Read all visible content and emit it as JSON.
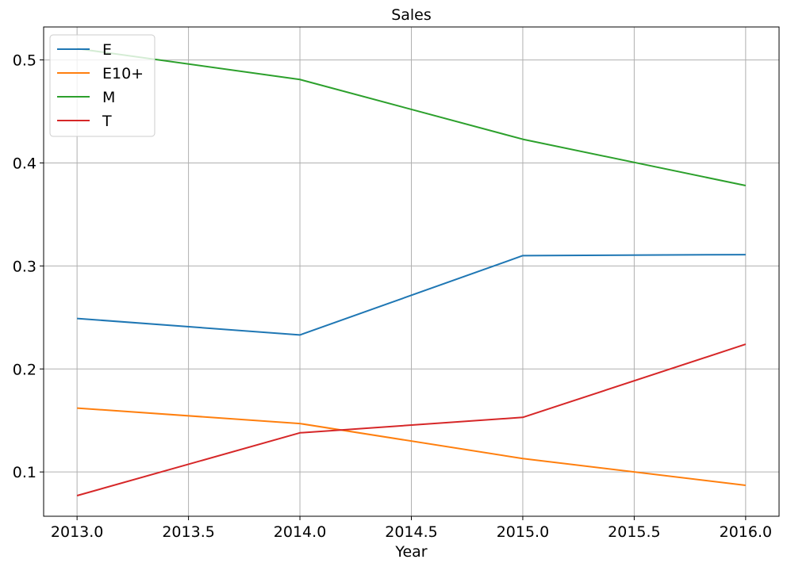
{
  "chart_data": {
    "type": "line",
    "title": "Sales",
    "xlabel": "Year",
    "ylabel": "",
    "xlim": [
      2012.85,
      2016.15
    ],
    "ylim": [
      0.057,
      0.532
    ],
    "xticks": [
      2013.0,
      2013.5,
      2014.0,
      2014.5,
      2015.0,
      2015.5,
      2016.0
    ],
    "xtick_labels": [
      "2013.0",
      "2013.5",
      "2014.0",
      "2014.5",
      "2015.0",
      "2015.5",
      "2016.0"
    ],
    "yticks": [
      0.1,
      0.2,
      0.3,
      0.4,
      0.5
    ],
    "ytick_labels": [
      "0.1",
      "0.2",
      "0.3",
      "0.4",
      "0.5"
    ],
    "grid": true,
    "legend_position": "top-left",
    "x": [
      2013,
      2014,
      2015,
      2016
    ],
    "series": [
      {
        "name": "E",
        "color": "#1f77b4",
        "values": [
          0.249,
          0.233,
          0.31,
          0.311
        ]
      },
      {
        "name": "E10+",
        "color": "#ff7f0e",
        "values": [
          0.162,
          0.147,
          0.113,
          0.087
        ]
      },
      {
        "name": "M",
        "color": "#2ca02c",
        "values": [
          0.511,
          0.481,
          0.423,
          0.378
        ]
      },
      {
        "name": "T",
        "color": "#d62728",
        "values": [
          0.077,
          0.138,
          0.153,
          0.224
        ]
      }
    ]
  }
}
